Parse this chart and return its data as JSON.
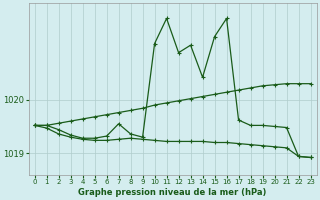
{
  "xlabel": "Graphe pression niveau de la mer (hPa)",
  "bg_color": "#d4edef",
  "grid_color": "#b0cccc",
  "line_color": "#1a5c1a",
  "ylim": [
    1018.6,
    1021.8
  ],
  "xlim": [
    -0.5,
    23.5
  ],
  "yticks": [
    1019,
    1020
  ],
  "xticks": [
    0,
    1,
    2,
    3,
    4,
    5,
    6,
    7,
    8,
    9,
    10,
    11,
    12,
    13,
    14,
    15,
    16,
    17,
    18,
    19,
    20,
    21,
    22,
    23
  ],
  "line1_x": [
    0,
    1,
    2,
    3,
    4,
    5,
    6,
    7,
    8,
    9,
    10,
    11,
    12,
    13,
    14,
    15,
    16,
    17,
    18,
    19,
    20,
    21,
    22,
    23
  ],
  "line1_y": [
    1019.52,
    1019.52,
    1019.56,
    1019.6,
    1019.64,
    1019.68,
    1019.72,
    1019.76,
    1019.8,
    1019.84,
    1019.9,
    1019.94,
    1019.98,
    1020.02,
    1020.06,
    1020.1,
    1020.14,
    1020.18,
    1020.22,
    1020.26,
    1020.28,
    1020.3,
    1020.3,
    1020.3
  ],
  "line2_x": [
    0,
    1,
    2,
    3,
    4,
    5,
    6,
    7,
    8,
    9,
    10,
    11,
    12,
    13,
    14,
    15,
    16,
    17,
    18,
    19,
    20,
    21,
    22,
    23
  ],
  "line2_y": [
    1019.52,
    1019.47,
    1019.36,
    1019.3,
    1019.26,
    1019.24,
    1019.24,
    1019.26,
    1019.28,
    1019.26,
    1019.24,
    1019.22,
    1019.22,
    1019.22,
    1019.22,
    1019.2,
    1019.2,
    1019.18,
    1019.16,
    1019.14,
    1019.12,
    1019.1,
    1018.94,
    1018.92
  ],
  "line3_x": [
    0,
    1,
    2,
    3,
    4,
    5,
    6,
    7,
    8,
    9,
    10,
    11,
    12,
    13,
    14,
    15,
    16,
    17,
    18,
    19,
    20,
    21,
    22,
    23
  ],
  "line3_y": [
    1019.52,
    1019.52,
    1019.44,
    1019.34,
    1019.28,
    1019.28,
    1019.32,
    1019.55,
    1019.36,
    1019.3,
    1021.05,
    1021.52,
    1020.88,
    1021.02,
    1020.42,
    1021.18,
    1021.52,
    1019.62,
    1019.52,
    1019.52,
    1019.5,
    1019.48,
    1018.94,
    1018.92
  ]
}
